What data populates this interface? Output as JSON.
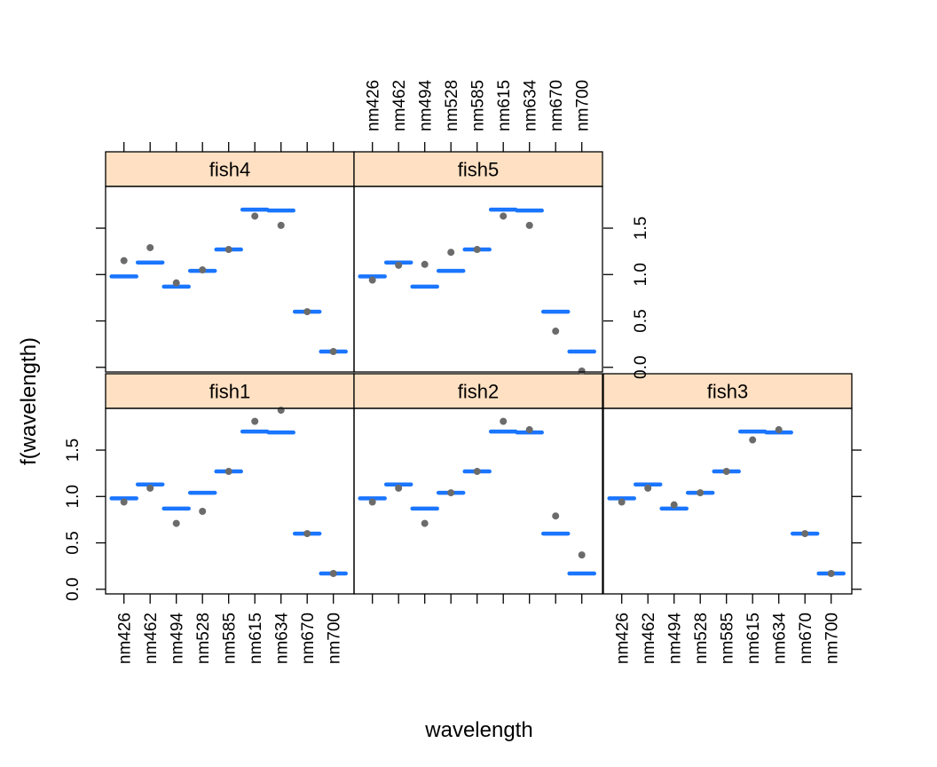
{
  "chart_data": {
    "type": "scatter",
    "layout": "trellis 3 columns x 2 rows",
    "xlabel": "wavelength",
    "ylabel": "f(wavelength)",
    "categories": [
      "nm426",
      "nm462",
      "nm494",
      "nm528",
      "nm585",
      "nm615",
      "nm634",
      "nm670",
      "nm700"
    ],
    "ylim": [
      -0.05,
      1.95
    ],
    "y_ticks": [
      0.0,
      0.5,
      1.0,
      1.5
    ],
    "y_tick_labels": [
      "0.0",
      "0.5",
      "1.0",
      "1.5"
    ],
    "fitted_values": [
      0.98,
      1.13,
      0.87,
      1.04,
      1.27,
      1.7,
      1.69,
      0.6,
      0.17
    ],
    "panels": [
      {
        "name": "fish1",
        "row": 0,
        "col": 0,
        "points": [
          0.94,
          1.09,
          0.71,
          0.84,
          1.27,
          1.81,
          1.93,
          0.6,
          0.17
        ]
      },
      {
        "name": "fish2",
        "row": 0,
        "col": 1,
        "points": [
          0.94,
          1.09,
          0.71,
          1.04,
          1.27,
          1.81,
          1.72,
          0.79,
          0.37
        ]
      },
      {
        "name": "fish3",
        "row": 0,
        "col": 2,
        "points": [
          0.94,
          1.09,
          0.91,
          1.04,
          1.27,
          1.61,
          1.72,
          0.6,
          0.17
        ]
      },
      {
        "name": "fish4",
        "row": 1,
        "col": 0,
        "points": [
          1.15,
          1.29,
          0.91,
          1.05,
          1.27,
          1.63,
          1.53,
          0.6,
          0.17
        ]
      },
      {
        "name": "fish5",
        "row": 1,
        "col": 1,
        "points": [
          0.94,
          1.1,
          1.11,
          1.24,
          1.27,
          1.63,
          1.53,
          0.39,
          -0.04
        ]
      }
    ],
    "fit_color": "#1a75ff",
    "point_color": "#6b6b6b",
    "strip_color": "#ffe0c2",
    "grid": false
  }
}
